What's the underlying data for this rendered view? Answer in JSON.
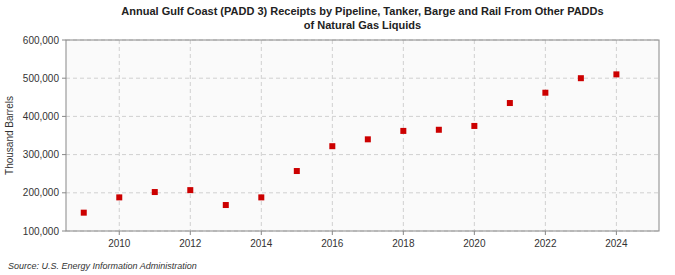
{
  "chart_data": {
    "type": "scatter",
    "title": "Annual Gulf Coast (PADD 3)  Receipts by Pipeline, Tanker, Barge and Rail From Other PADDs\nof Natural Gas Liquids",
    "ylabel": "Thousand Barrels",
    "source": "Source: U.S. Energy Information Administration",
    "x": [
      2009,
      2010,
      2011,
      2012,
      2013,
      2014,
      2015,
      2016,
      2017,
      2018,
      2019,
      2020,
      2021,
      2022,
      2023,
      2024
    ],
    "values": [
      148000,
      188000,
      202000,
      207000,
      168000,
      188000,
      257000,
      322000,
      340000,
      362000,
      365000,
      375000,
      435000,
      462000,
      500000,
      510000
    ],
    "color": "#cc0000",
    "marker": "square",
    "xlim": [
      2008.5,
      2025.2
    ],
    "xticks": [
      2010,
      2012,
      2014,
      2016,
      2018,
      2020,
      2022,
      2024
    ],
    "ylim": [
      100000,
      600000
    ],
    "yticks": [
      {
        "value": 100000,
        "label": "100,000"
      },
      {
        "value": 200000,
        "label": "200,000"
      },
      {
        "value": 300000,
        "label": "300,000"
      },
      {
        "value": 400000,
        "label": "400,000"
      },
      {
        "value": 500000,
        "label": "500,000"
      },
      {
        "value": 600000,
        "label": "600,000"
      }
    ],
    "grid": true
  }
}
